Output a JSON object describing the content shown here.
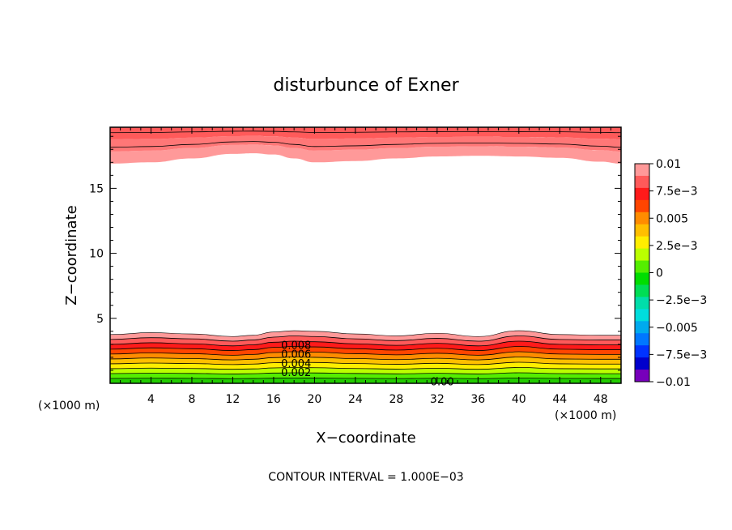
{
  "chart_data": {
    "type": "heatmap",
    "title": "disturbunce of Exner",
    "xlabel": "X−coordinate",
    "ylabel": "Z−coordinate",
    "x_unit_left": "(×1000 m)",
    "x_unit_right": "(×1000 m)",
    "footer": "CONTOUR INTERVAL = 1.000E−03",
    "xlim": [
      0,
      50
    ],
    "ylim": [
      0,
      19.7
    ],
    "x_ticks": [
      4,
      8,
      12,
      16,
      20,
      24,
      28,
      32,
      36,
      40,
      44,
      48
    ],
    "y_ticks": [
      5,
      10,
      15
    ],
    "contour_interval": 0.001,
    "contour_labels": [
      {
        "text": "0.008",
        "x": 18.2,
        "y": 2.9
      },
      {
        "text": "0.006",
        "x": 18.2,
        "y": 2.2
      },
      {
        "text": "0.004",
        "x": 18.2,
        "y": 1.5
      },
      {
        "text": "0.002",
        "x": 18.2,
        "y": 0.8
      },
      {
        "text": "0.00",
        "x": 32.5,
        "y": 0.1
      }
    ],
    "field": {
      "x": [
        0,
        4,
        8,
        12,
        14,
        16,
        18,
        20,
        24,
        28,
        32,
        36,
        40,
        44,
        48,
        50
      ],
      "bottom_top_z": [
        3.75,
        3.9,
        3.8,
        3.6,
        3.7,
        3.95,
        4.05,
        4.0,
        3.8,
        3.65,
        3.85,
        3.6,
        4.05,
        3.75,
        3.7,
        3.7
      ],
      "top_bottom_z": [
        16.9,
        17.0,
        17.3,
        17.65,
        17.7,
        17.6,
        17.3,
        17.0,
        17.1,
        17.3,
        17.45,
        17.5,
        17.45,
        17.35,
        17.05,
        16.9
      ]
    },
    "colorbar": {
      "tick_labels": [
        "0.01",
        "7.5e−3",
        "0.005",
        "2.5e−3",
        "0",
        "−2.5e−3",
        "−0.005",
        "−7.5e−3",
        "−0.01"
      ],
      "colors": [
        "#ff9999",
        "#ff5a5a",
        "#ff1a1a",
        "#ff4500",
        "#ff8c00",
        "#ffbf00",
        "#ffee00",
        "#bbff00",
        "#55ee00",
        "#00dd00",
        "#00dd55",
        "#00ddaa",
        "#00dddd",
        "#00aaee",
        "#0077ff",
        "#0033ff",
        "#0000cc",
        "#7700bb"
      ]
    }
  }
}
